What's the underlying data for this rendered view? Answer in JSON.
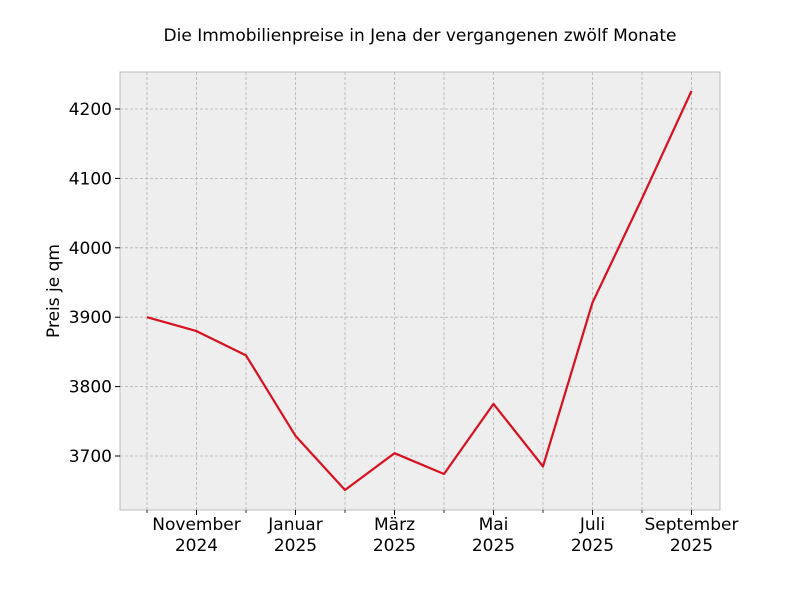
{
  "chart_data": {
    "type": "line",
    "title": "Die Immobilienpreise in Jena der vergangenen zwölf Monate",
    "xlabel": "",
    "ylabel": "Preis je qm",
    "x": [
      "2024-10",
      "2024-11",
      "2024-12",
      "2025-01",
      "2025-02",
      "2025-03",
      "2025-04",
      "2025-05",
      "2025-06",
      "2025-07",
      "2025-08",
      "2025-09"
    ],
    "series": [
      {
        "name": "Preis je qm",
        "color": "#d7111f",
        "values": [
          3900,
          3880,
          3845,
          3729,
          3651,
          3704,
          3674,
          3775,
          3685,
          3921,
          4071,
          4226
        ]
      }
    ],
    "xticks": [
      {
        "label": [
          "November",
          "2024"
        ],
        "index": 1
      },
      {
        "label": [
          "Januar",
          "2025"
        ],
        "index": 3
      },
      {
        "label": [
          "März",
          "2025"
        ],
        "index": 5
      },
      {
        "label": [
          "Mai",
          "2025"
        ],
        "index": 7
      },
      {
        "label": [
          "Juli",
          "2025"
        ],
        "index": 9
      },
      {
        "label": [
          "September",
          "2025"
        ],
        "index": 11
      }
    ],
    "yticks": [
      3700,
      3800,
      3900,
      4000,
      4100,
      4200
    ],
    "ylim": [
      3622,
      4253
    ],
    "grid": true,
    "legend": false
  },
  "colors": {
    "plot_background": "#eeeeee",
    "grid": "#b2b2b2",
    "spine": "#bcbcbc",
    "line": "#d7111f"
  }
}
